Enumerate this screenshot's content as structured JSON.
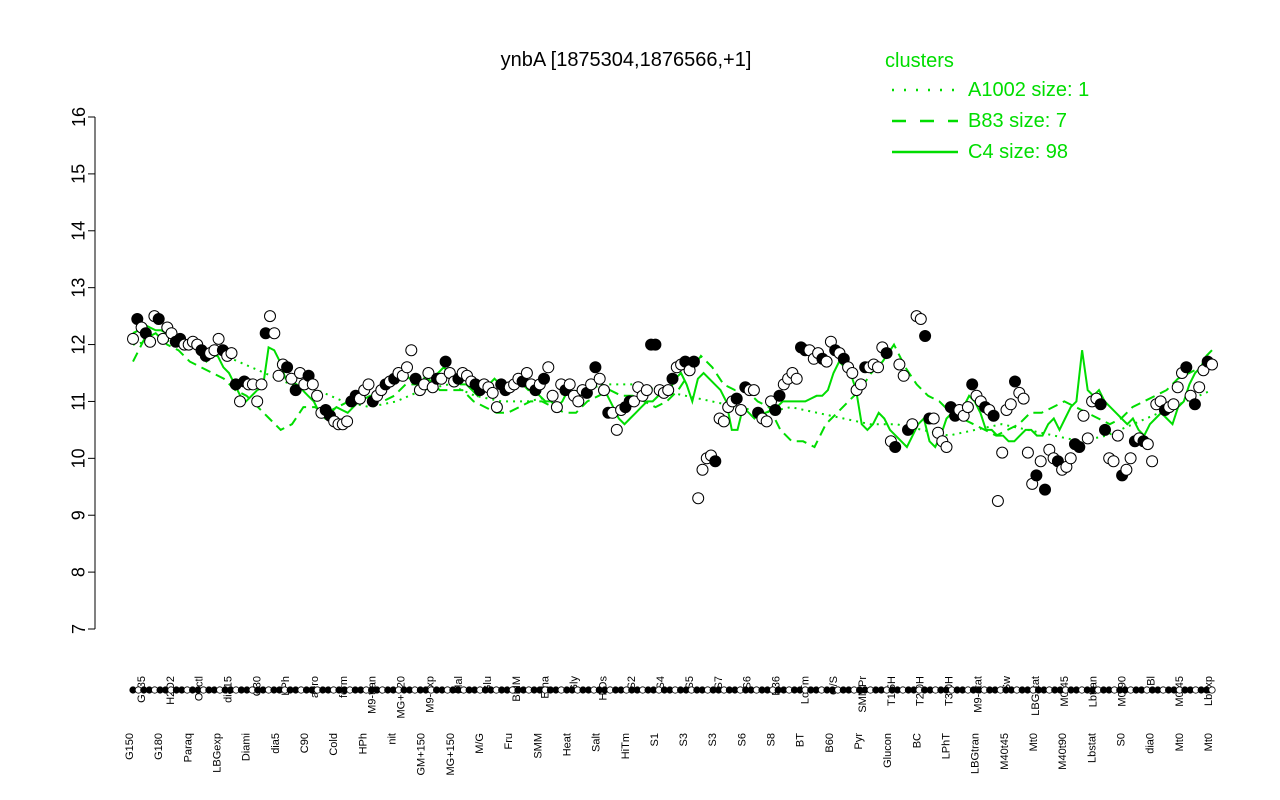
{
  "chart_data": {
    "type": "line",
    "title": "ynbA [1875304,1876566,+1]",
    "xlabel": "",
    "ylabel": "",
    "ylim": [
      7,
      16
    ],
    "yticks": [
      7,
      8,
      9,
      10,
      11,
      12,
      13,
      14,
      15,
      16
    ],
    "legend": {
      "title": "clusters",
      "placement": "top-right",
      "entries": [
        {
          "label": "A1002 size: 1",
          "style": "dotted"
        },
        {
          "label": "B83 size: 7",
          "style": "dashed"
        },
        {
          "label": "C4 size: 98",
          "style": "solid"
        }
      ]
    },
    "colors": {
      "lines": "#00dd00",
      "points_fill": "#ffffff",
      "points_dark": "#000000",
      "axis": "#000000"
    },
    "xtick_labels_bottom": [
      "G150",
      "G180",
      "Paraq",
      "LBGexp",
      "Diami",
      "dia5",
      "C90",
      "Cold",
      "HPh",
      "nit",
      "GM+150",
      "MG+150",
      "M/G",
      "Fru",
      "SMM",
      "Heat",
      "Salt",
      "HiTm",
      "S1",
      "S3",
      "S3",
      "S6",
      "S8",
      "BT",
      "B60",
      "Pyr",
      "Glucon",
      "BC",
      "LPhT",
      "LBGtran",
      "M40t45",
      "Mt0",
      "M40t90",
      "Lbstat",
      "S0",
      "dia0",
      "Mt0",
      "Mt0"
    ],
    "xtick_labels_top": [
      "G135",
      "H2O2",
      "Oxctl",
      "dia15",
      "C30",
      "LPh",
      "aero",
      "ferm",
      "M9-tran",
      "MG+120",
      "M9-exp",
      "Mal",
      "Glu",
      "BMM",
      "Etha",
      "Gly",
      "HiOs",
      "S2",
      "S4",
      "S5",
      "S7",
      "S6",
      "B36",
      "LoTm",
      "G/S",
      "SMMPr",
      "T1.5H",
      "T2.0H",
      "T3.0H",
      "M9-stat",
      "Sw",
      "LBGstat",
      "M0t45",
      "Lbtran",
      "M0t90",
      "Bl",
      "M0t45",
      "Lbexp"
    ],
    "series": [
      {
        "style": "solid",
        "values": [
          12.2,
          12.25,
          12.35,
          12.3,
          12.25,
          12.25,
          12.2,
          12.15,
          12.1,
          12.05,
          12.0,
          11.95,
          11.8,
          11.7,
          11.8,
          11.8,
          11.6,
          11.5,
          11.3,
          11.1,
          11.0,
          11.1,
          11.2,
          11.25,
          11.95,
          11.9,
          11.7,
          11.4,
          11.35,
          11.3,
          11.2,
          11.1,
          11.0,
          10.8,
          10.7,
          10.8,
          10.9,
          10.85,
          10.8,
          10.9,
          11.0,
          11.05,
          11.1,
          11.1,
          11.2,
          11.3,
          11.4,
          11.45,
          11.5,
          11.4,
          11.4,
          11.3,
          11.5,
          11.4,
          11.5,
          11.6,
          11.5,
          11.4,
          11.3,
          11.3,
          11.2,
          11.1,
          11.3,
          11.3,
          11.4,
          11.3,
          11.2,
          11.25,
          11.3,
          11.3,
          11.2,
          11.2,
          11.1,
          11.0,
          11.0,
          10.9,
          11.0,
          11.2,
          11.0,
          11.1,
          11.2,
          11.3,
          11.4,
          11.3,
          11.1,
          10.9,
          10.7,
          10.6,
          10.7,
          10.8,
          10.9,
          11.0,
          11.0,
          11.1,
          11.1,
          11.2,
          11.4,
          11.5,
          11.3,
          11.0,
          11.4,
          11.5,
          11.4,
          11.3,
          11.2,
          11.0,
          10.5,
          10.5,
          10.9,
          10.8,
          10.7,
          10.8,
          10.8,
          10.85,
          10.9,
          11.0,
          11.0,
          11.0,
          11.0,
          11.0,
          11.05,
          11.1,
          11.1,
          11.2,
          11.5,
          11.7,
          11.6,
          11.5,
          11.2,
          10.6,
          10.5,
          10.6,
          10.8,
          10.7,
          10.5,
          10.4,
          10.3,
          10.2,
          10.4,
          10.6,
          10.7,
          10.3,
          10.2,
          10.4,
          10.7,
          10.8,
          10.8,
          10.9,
          11.1,
          11.0,
          10.8,
          10.5,
          10.5,
          10.4,
          10.4,
          10.3,
          10.3,
          10.4,
          10.5,
          10.5,
          10.4,
          10.4,
          10.6,
          10.7,
          10.5,
          10.7,
          10.9,
          11.0,
          11.9,
          11.2,
          11.1,
          11.2,
          11.0,
          10.9,
          10.8,
          10.7,
          10.6,
          10.7,
          10.5,
          10.4,
          10.6,
          10.7,
          10.8,
          10.7,
          10.6,
          10.9,
          11.0,
          11.3,
          11.5,
          11.6,
          11.8,
          11.9
        ]
      },
      {
        "style": "dashed",
        "values": [
          11.7,
          12.1,
          12.2,
          12.0,
          11.9,
          11.7,
          11.6,
          11.5,
          11.4,
          11.2,
          11.1,
          10.9,
          10.7,
          10.5,
          10.6,
          10.9,
          10.9,
          10.8,
          10.9,
          11.0,
          11.0,
          11.1,
          11.0,
          11.1,
          11.3,
          11.3,
          11.4,
          11.2,
          11.2,
          11.2,
          11.0,
          10.9,
          10.8,
          10.8,
          10.9,
          11.0,
          11.0,
          10.9,
          10.8,
          10.8,
          11.0,
          11.1,
          11.2,
          11.1,
          11.1,
          11.0,
          10.9,
          11.0,
          11.2,
          11.5,
          11.8,
          11.6,
          11.3,
          11.2,
          11.2,
          11.0,
          10.9,
          10.5,
          10.3,
          10.3,
          10.2,
          10.6,
          10.8,
          11.0,
          11.2,
          11.5,
          11.7,
          12.0,
          11.6,
          11.3,
          11.1,
          11.0,
          10.8,
          10.7,
          10.6,
          10.5,
          10.4,
          10.5,
          10.6,
          10.8,
          10.8,
          10.9,
          11.0,
          10.9,
          10.8,
          10.7,
          10.6,
          10.7,
          10.9,
          11.0,
          11.1,
          11.2,
          11.4,
          11.5,
          11.6,
          11.7
        ]
      },
      {
        "style": "dotted",
        "values": [
          12.0,
          12.1,
          12.0,
          11.9,
          11.7,
          11.5,
          11.3,
          11.2,
          11.0,
          10.9,
          11.0,
          11.2,
          11.3,
          11.1,
          11.0,
          11.0,
          11.1,
          11.2,
          11.3,
          11.3,
          11.2,
          11.1,
          11.0,
          10.9,
          10.8,
          10.9,
          10.8,
          10.7,
          10.6,
          10.6,
          10.5,
          10.4,
          10.5,
          10.6,
          10.5,
          10.4,
          10.3,
          10.4,
          10.6,
          10.8,
          11.0,
          11.2
        ]
      }
    ],
    "points": [
      12.1,
      12.45,
      12.3,
      12.2,
      12.05,
      12.5,
      12.45,
      12.1,
      12.3,
      12.2,
      12.05,
      12.1,
      12.0,
      12.0,
      12.05,
      12.0,
      11.9,
      11.8,
      11.85,
      11.9,
      12.1,
      11.9,
      11.8,
      11.85,
      11.3,
      11.0,
      11.35,
      11.3,
      11.3,
      11.0,
      11.3,
      12.2,
      12.5,
      12.2,
      11.45,
      11.65,
      11.6,
      11.4,
      11.2,
      11.5,
      11.3,
      11.45,
      11.3,
      11.1,
      10.8,
      10.85,
      10.75,
      10.65,
      10.6,
      10.6,
      10.65,
      11.0,
      11.1,
      11.05,
      11.2,
      11.3,
      11.0,
      11.1,
      11.2,
      11.3,
      11.35,
      11.4,
      11.5,
      11.45,
      11.6,
      11.9,
      11.4,
      11.2,
      11.3,
      11.5,
      11.25,
      11.4,
      11.4,
      11.7,
      11.5,
      11.35,
      11.4,
      11.5,
      11.45,
      11.35,
      11.3,
      11.2,
      11.3,
      11.25,
      11.15,
      10.9,
      11.3,
      11.2,
      11.25,
      11.3,
      11.4,
      11.35,
      11.5,
      11.3,
      11.2,
      11.3,
      11.4,
      11.6,
      11.1,
      10.9,
      11.3,
      11.2,
      11.3,
      11.1,
      11.0,
      11.2,
      11.15,
      11.3,
      11.6,
      11.4,
      11.2,
      10.8,
      10.8,
      10.5,
      10.85,
      10.9,
      11.0,
      11.0,
      11.25,
      11.1,
      11.2,
      12.0,
      12.0,
      11.2,
      11.15,
      11.2,
      11.4,
      11.6,
      11.65,
      11.7,
      11.55,
      11.7,
      9.3,
      9.8,
      10.0,
      10.05,
      9.95,
      10.7,
      10.65,
      10.9,
      11.0,
      11.05,
      10.85,
      11.25,
      11.2,
      11.2,
      10.8,
      10.7,
      10.65,
      11.0,
      10.85,
      11.1,
      11.3,
      11.4,
      11.5,
      11.4,
      11.95,
      11.9,
      11.9,
      11.75,
      11.85,
      11.75,
      11.7,
      12.05,
      11.9,
      11.85,
      11.75,
      11.6,
      11.5,
      11.2,
      11.3,
      11.6,
      11.6,
      11.65,
      11.6,
      11.95,
      11.85,
      10.3,
      10.2,
      11.65,
      11.45,
      10.5,
      10.6,
      12.5,
      12.45,
      12.15,
      10.7,
      10.7,
      10.45,
      10.3,
      10.2,
      10.9,
      10.75,
      10.85,
      10.75,
      10.9,
      11.3,
      11.1,
      11.0,
      10.9,
      10.85,
      10.75,
      9.25,
      10.1,
      10.85,
      10.95,
      11.35,
      11.15,
      11.05,
      10.1,
      9.55,
      9.7,
      9.95,
      9.45,
      10.15,
      10.0,
      9.95,
      9.8,
      9.85,
      10.0,
      10.25,
      10.2,
      10.75,
      10.35,
      11.0,
      11.05,
      10.95,
      10.5,
      10.0,
      9.95,
      10.4,
      9.7,
      9.8,
      10.0,
      10.3,
      10.35,
      10.3,
      10.25,
      9.95,
      10.95,
      11.0,
      10.85,
      10.9,
      10.95,
      11.25,
      11.5,
      11.6,
      11.1,
      10.95,
      11.25,
      11.55,
      11.7,
      11.65
    ]
  }
}
